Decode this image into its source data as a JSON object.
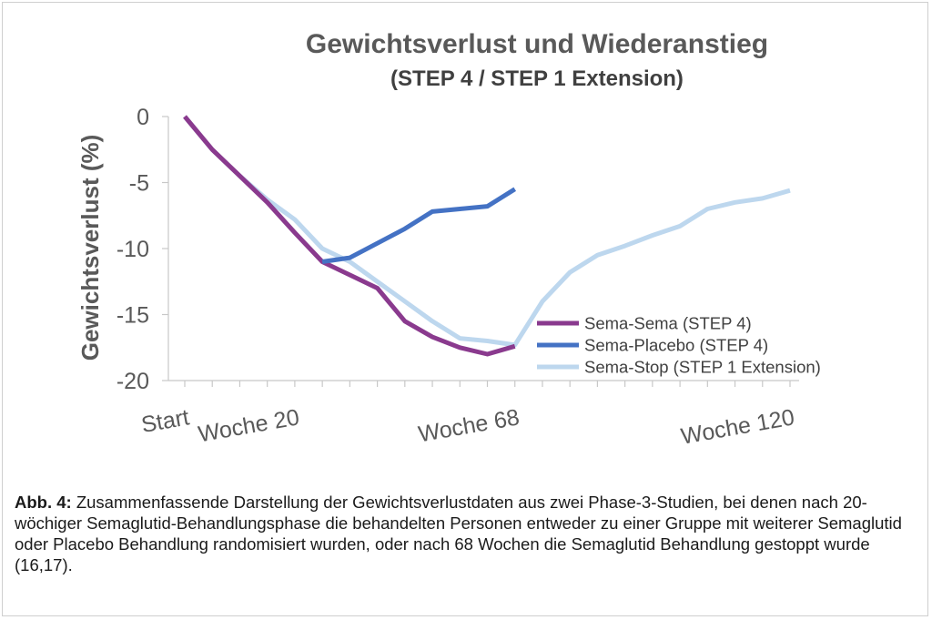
{
  "chart_data": {
    "type": "line",
    "title": "Gewichtsverlust und Wiederanstieg",
    "subtitle": "(STEP 4 / STEP 1 Extension)",
    "xlabel": "",
    "ylabel": "Gewichtsverlust (%)",
    "ylim": [
      -20,
      0
    ],
    "yticks": [
      0,
      -5,
      -10,
      -15,
      -20
    ],
    "xlim": [
      0,
      22
    ],
    "xticks": [
      {
        "x": 0,
        "label": "Start"
      },
      {
        "x": 4,
        "label": "Woche 20"
      },
      {
        "x": 12,
        "label": "Woche 68"
      },
      {
        "x": 22,
        "label": "Woche 120"
      }
    ],
    "minor_tick_count": 23,
    "legend_position": "bottom-right",
    "series": [
      {
        "name": "Sema-Sema (STEP 4)",
        "color": "#8a3a8e",
        "x": [
          0,
          1,
          2,
          3,
          4,
          5,
          6,
          7,
          8,
          9,
          10,
          11,
          12
        ],
        "y": [
          0,
          -2.5,
          -4.5,
          -6.5,
          -8.8,
          -11,
          -12,
          -13,
          -15.5,
          -16.7,
          -17.5,
          -18,
          -17.4
        ]
      },
      {
        "name": "Sema-Placebo (STEP 4)",
        "color": "#4472c4",
        "x": [
          5,
          6,
          7,
          8,
          9,
          10,
          11,
          12
        ],
        "y": [
          -11,
          -10.7,
          -9.6,
          -8.5,
          -7.2,
          -7,
          -6.8,
          -5.5
        ]
      },
      {
        "name": "Sema-Stop (STEP 1 Extension)",
        "color": "#bdd7ee",
        "x": [
          0,
          1,
          2,
          3,
          4,
          5,
          6,
          7,
          8,
          9,
          10,
          11,
          12,
          13,
          14,
          15,
          16,
          17,
          18,
          19,
          20,
          21,
          22
        ],
        "y": [
          0,
          -2.5,
          -4.5,
          -6.3,
          -7.8,
          -10,
          -11,
          -12.5,
          -14,
          -15.5,
          -16.8,
          -17,
          -17.3,
          -14,
          -11.8,
          -10.5,
          -9.8,
          -9,
          -8.3,
          -7,
          -6.5,
          -6.2,
          -5.6
        ]
      }
    ]
  },
  "caption": {
    "label": "Abb. 4:",
    "text": " Zusammenfassende Darstellung der Gewichtsverlustdaten aus zwei Phase-3-Studien, bei denen nach 20-wöchiger Semaglutid-Behandlungsphase die behandelten Personen entweder zu einer Gruppe mit weiterer Semaglutid oder Placebo Behandlung randomisiert wurden, oder nach 68 Wochen die Semaglutid Behandlung gestoppt wurde (16,17)."
  }
}
